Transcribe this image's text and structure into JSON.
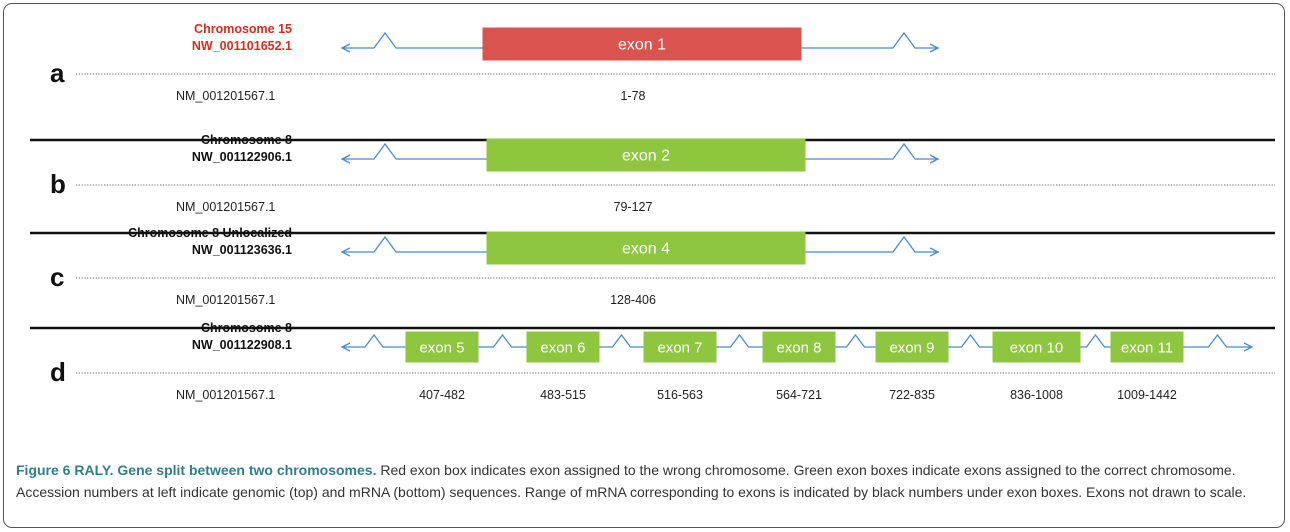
{
  "panels": [
    {
      "letter": "a",
      "chromosome": "Chromosome 15",
      "genomic": "NW_001101652.1",
      "mrna": "NM_001201567.1",
      "label_color": "#d62d20",
      "exons": [
        {
          "label": "exon 1",
          "range": "1-78",
          "color": "#d9534f",
          "status": "wrong chromosome"
        }
      ]
    },
    {
      "letter": "b",
      "chromosome": "Chromosome 8",
      "genomic": "NW_001122906.1",
      "mrna": "NM_001201567.1",
      "label_color": "#111111",
      "exons": [
        {
          "label": "exon 2",
          "range": "79-127",
          "color": "#8ec63f",
          "status": "correct chromosome"
        }
      ]
    },
    {
      "letter": "c",
      "chromosome": "Chromosome 8 Unlocalized",
      "genomic": "NW_001123636.1",
      "mrna": "NM_001201567.1",
      "label_color": "#111111",
      "exons": [
        {
          "label": "exon 4",
          "range": "128-406",
          "color": "#8ec63f",
          "status": "correct chromosome"
        }
      ]
    },
    {
      "letter": "d",
      "chromosome": "Chromosome 8",
      "genomic": "NW_001122908.1",
      "mrna": "NM_001201567.1",
      "label_color": "#111111",
      "exons": [
        {
          "label": "exon 5",
          "range": "407-482",
          "color": "#8ec63f",
          "status": "correct chromosome"
        },
        {
          "label": "exon 6",
          "range": "483-515",
          "color": "#8ec63f",
          "status": "correct chromosome"
        },
        {
          "label": "exon 7",
          "range": "516-563",
          "color": "#8ec63f",
          "status": "correct chromosome"
        },
        {
          "label": "exon 8",
          "range": "564-721",
          "color": "#8ec63f",
          "status": "correct chromosome"
        },
        {
          "label": "exon 9",
          "range": "722-835",
          "color": "#8ec63f",
          "status": "correct chromosome"
        },
        {
          "label": "exon 10",
          "range": "836-1008",
          "color": "#8ec63f",
          "status": "correct chromosome"
        },
        {
          "label": "exon 11",
          "range": "1009-1442",
          "color": "#8ec63f",
          "status": "correct chromosome"
        }
      ]
    }
  ],
  "colors": {
    "intron_line": "#4a8bc8",
    "separator": "#111111",
    "dotted_line": "#666666",
    "exon_text": "#ffffff",
    "caption_title": "#2e7f8c"
  },
  "caption": {
    "title": "Figure 6 RALY. Gene split between two chromosomes.",
    "text": " Red exon box indicates exon assigned to the wrong chromosome. Green exon boxes indicate exons assigned to the correct chromosome. Accession numbers at left indicate genomic (top) and mRNA (bottom) sequences. Range of mRNA corresponding to exons is indicated by black numbers under exon boxes. Exons not drawn to scale."
  }
}
